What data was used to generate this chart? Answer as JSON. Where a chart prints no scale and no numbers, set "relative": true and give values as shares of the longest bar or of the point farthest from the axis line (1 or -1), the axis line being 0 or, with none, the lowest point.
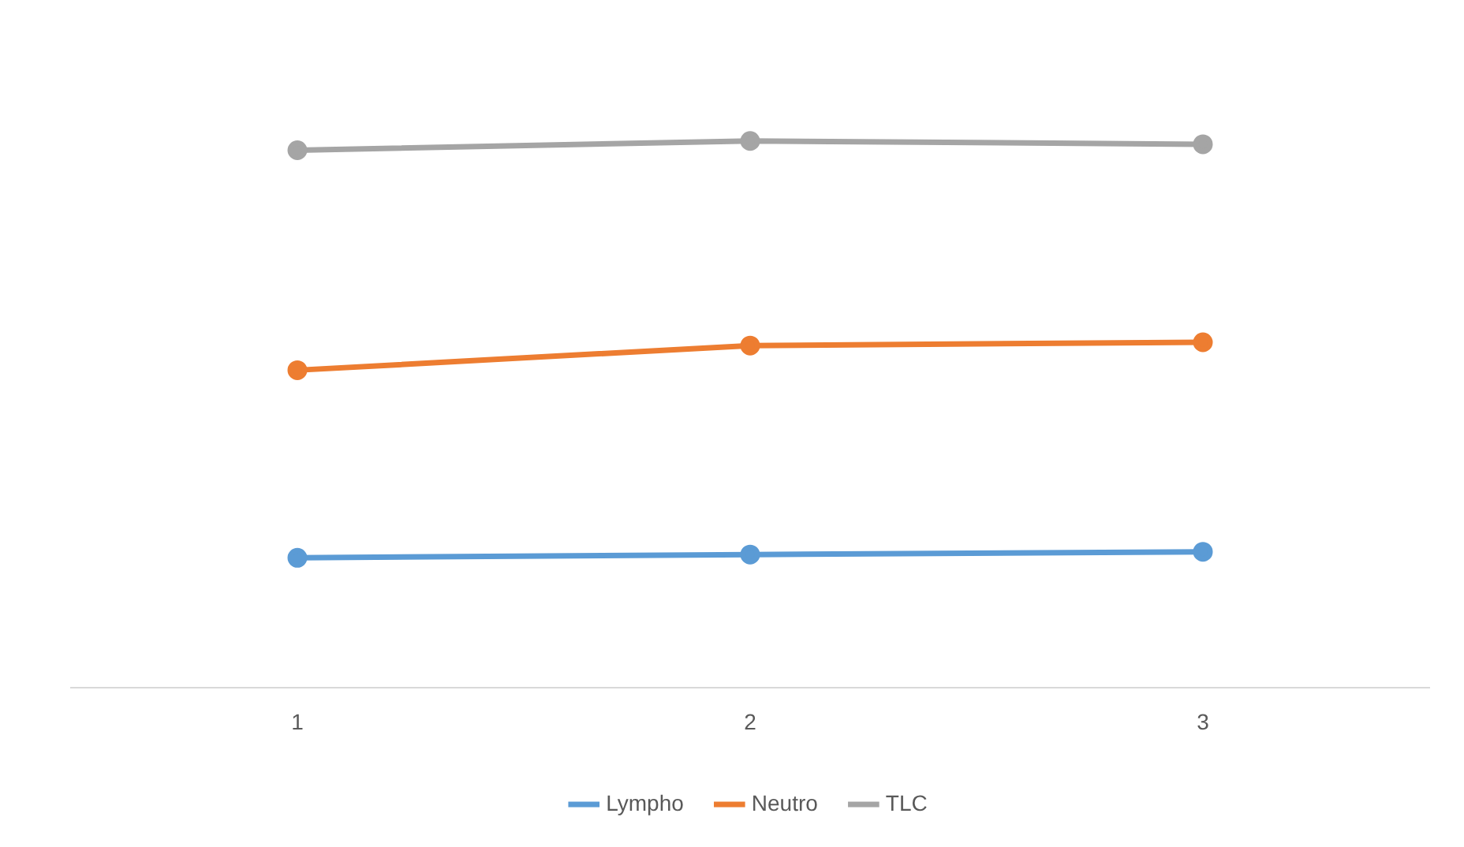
{
  "chart_data": {
    "type": "line",
    "relative": true,
    "categories": [
      "1",
      "2",
      "3"
    ],
    "series": [
      {
        "name": "Lympho",
        "color": "#5b9bd5",
        "values": [
          0.238,
          0.244,
          0.249
        ]
      },
      {
        "name": "Neutro",
        "color": "#ed7d31",
        "values": [
          0.581,
          0.626,
          0.632
        ]
      },
      {
        "name": "TLC",
        "color": "#a5a5a5",
        "values": [
          0.983,
          1,
          0.994
        ]
      }
    ],
    "marker": "circle",
    "legend": "bottom",
    "grid": false
  }
}
